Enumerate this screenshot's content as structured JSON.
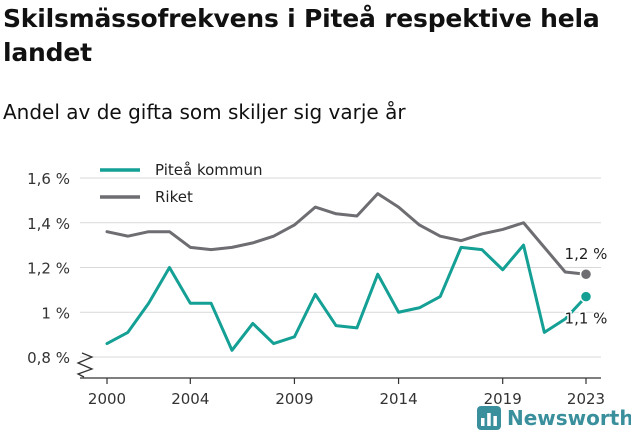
{
  "header": {
    "title": "Skilsmässofrekvens i Piteå respektive hela landet",
    "subtitle": "Andel av de gifta som skiljer sig varje år"
  },
  "brand": {
    "name": "Newsworthy",
    "color": "#3a8f9c"
  },
  "chart_data": {
    "type": "line",
    "x": [
      2000,
      2001,
      2002,
      2003,
      2004,
      2005,
      2006,
      2007,
      2008,
      2009,
      2010,
      2011,
      2012,
      2013,
      2014,
      2015,
      2016,
      2017,
      2018,
      2019,
      2020,
      2021,
      2022,
      2023
    ],
    "x_ticks": [
      "2000",
      "2004",
      "2009",
      "2014",
      "2019",
      "2023"
    ],
    "y_ticks": [
      "0,8 %",
      "1 %",
      "1,2 %",
      "1,4 %",
      "1,6 %"
    ],
    "ylim": [
      0.8,
      1.6
    ],
    "y_axis_broken": true,
    "legend_position": "top-left",
    "series": [
      {
        "name": "Piteå kommun",
        "color": "#14a095",
        "values": [
          0.86,
          0.91,
          1.04,
          1.2,
          1.04,
          1.04,
          0.83,
          0.95,
          0.86,
          0.89,
          1.08,
          0.94,
          0.93,
          1.17,
          1.0,
          1.02,
          1.07,
          1.29,
          1.28,
          1.19,
          1.3,
          0.91,
          0.97,
          1.07
        ],
        "end_label": "1,1 %"
      },
      {
        "name": "Riket",
        "color": "#6d6d72",
        "values": [
          1.36,
          1.34,
          1.36,
          1.36,
          1.29,
          1.28,
          1.29,
          1.31,
          1.34,
          1.39,
          1.47,
          1.44,
          1.43,
          1.53,
          1.47,
          1.39,
          1.34,
          1.32,
          1.35,
          1.37,
          1.4,
          1.29,
          1.18,
          1.17
        ],
        "end_label": "1,2 %"
      }
    ]
  }
}
